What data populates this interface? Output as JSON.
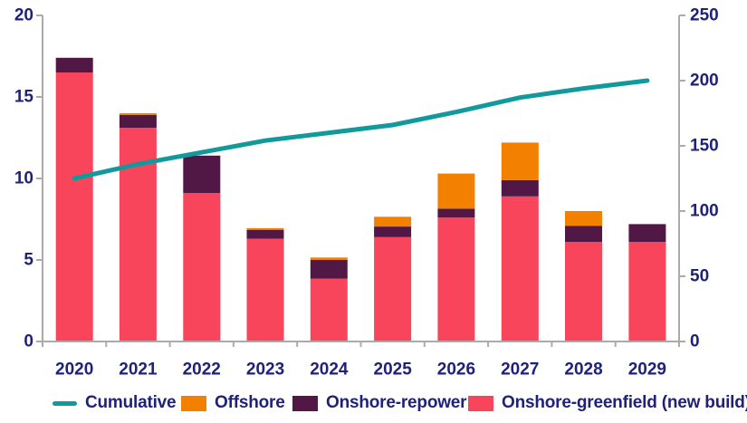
{
  "chart_data": {
    "type": "bar",
    "subtype": "stacked-bars-with-line-overlay",
    "title": "",
    "categories": [
      "2020",
      "2021",
      "2022",
      "2023",
      "2024",
      "2025",
      "2026",
      "2027",
      "2028",
      "2029"
    ],
    "series": [
      {
        "name": "Onshore-greenfield (new build)",
        "color_key": "greenfield",
        "axis": "left",
        "values": [
          16.5,
          13.1,
          9.1,
          6.3,
          3.85,
          6.4,
          7.6,
          8.9,
          6.1,
          6.1
        ]
      },
      {
        "name": "Onshore-repower",
        "color_key": "repower",
        "axis": "left",
        "values": [
          0.9,
          0.8,
          2.3,
          0.55,
          1.15,
          0.65,
          0.55,
          1.0,
          1.0,
          1.1
        ]
      },
      {
        "name": "Offshore",
        "color_key": "offshore",
        "axis": "left",
        "values": [
          0,
          0.1,
          0,
          0.1,
          0.15,
          0.6,
          2.15,
          2.3,
          0.9,
          0
        ]
      }
    ],
    "line_series": {
      "name": "Cumulative",
      "color_key": "cumulative",
      "axis": "right",
      "values": [
        125,
        136,
        145,
        154,
        160,
        166,
        176,
        187,
        194,
        200
      ]
    },
    "bar_totals": [
      17.4,
      14.0,
      11.4,
      6.95,
      5.15,
      7.65,
      10.3,
      12.2,
      8.0,
      7.2
    ],
    "left_axis": {
      "ticks": [
        0,
        5,
        10,
        15,
        20
      ],
      "range": [
        0,
        20
      ]
    },
    "right_axis": {
      "ticks": [
        0,
        50,
        100,
        150,
        200,
        250
      ],
      "range": [
        0,
        250
      ]
    },
    "grid": false,
    "legend_position": "bottom",
    "xlabel": "",
    "ylabel_left": "",
    "ylabel_right": ""
  },
  "colors": {
    "greenfield": "#F9455C",
    "repower": "#521845",
    "offshore": "#F48000",
    "cumulative": "#12999C",
    "text": "#1F2276",
    "axis": "#ABABAB"
  },
  "legend": {
    "items": [
      {
        "label": "Cumulative",
        "swatch": "line",
        "color_key": "cumulative"
      },
      {
        "label": "Offshore",
        "swatch": "square",
        "color_key": "offshore"
      },
      {
        "label": "Onshore-repower",
        "swatch": "square",
        "color_key": "repower"
      },
      {
        "label": "Onshore-greenfield (new build)",
        "swatch": "square",
        "color_key": "greenfield"
      }
    ]
  }
}
